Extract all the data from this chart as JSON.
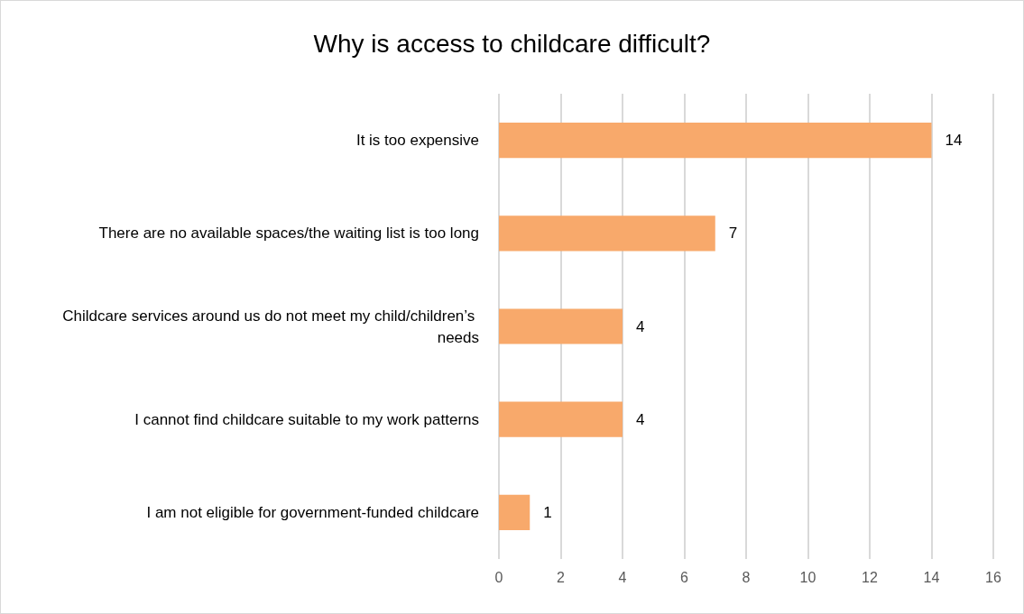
{
  "chart_data": {
    "type": "bar",
    "orientation": "horizontal",
    "title": "Why is access to childcare difficult?",
    "categories": [
      "It is too expensive",
      "There are no available spaces/the waiting list is too long",
      "Childcare services around us do not meet my child/children’s needs",
      "I cannot find childcare suitable to my work patterns",
      "I am not eligible for government-funded childcare"
    ],
    "values": [
      14,
      7,
      4,
      4,
      1
    ],
    "color": "#f8a96b",
    "xlim": [
      0,
      16
    ],
    "xticks": [
      0,
      2,
      4,
      6,
      8,
      10,
      12,
      14,
      16
    ],
    "grid": "x",
    "data_labels": true
  }
}
